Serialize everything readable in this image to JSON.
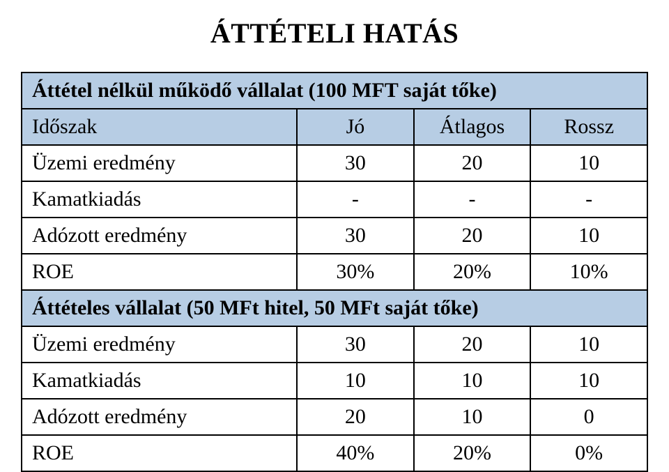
{
  "colors": {
    "header_bg": "#b7cde4",
    "cell_bg": "#ffffff",
    "border": "#000000",
    "text": "#000000"
  },
  "title": "ÁTTÉTELI HATÁS",
  "section1": {
    "banner": "Áttétel nélkül működő vállalat (100 MFT saját tőke)",
    "header": [
      "Időszak",
      "Jó",
      "Átlagos",
      "Rossz"
    ],
    "rows": [
      {
        "label": "Üzemi eredmény",
        "v": [
          "30",
          "20",
          "10"
        ]
      },
      {
        "label": "Kamatkiadás",
        "v": [
          "-",
          "-",
          "-"
        ]
      },
      {
        "label": "Adózott eredmény",
        "v": [
          "30",
          "20",
          "10"
        ]
      },
      {
        "label": "ROE",
        "v": [
          "30%",
          "20%",
          "10%"
        ]
      }
    ]
  },
  "section2": {
    "banner": "Áttételes vállalat (50 MFt hitel, 50 MFt saját tőke)",
    "rows": [
      {
        "label": "Üzemi eredmény",
        "v": [
          "30",
          "20",
          "10"
        ]
      },
      {
        "label": "Kamatkiadás",
        "v": [
          "10",
          "10",
          "10"
        ]
      },
      {
        "label": "Adózott eredmény",
        "v": [
          "20",
          "10",
          "0"
        ]
      },
      {
        "label": "ROE",
        "v": [
          "40%",
          "20%",
          "0%"
        ]
      }
    ]
  }
}
